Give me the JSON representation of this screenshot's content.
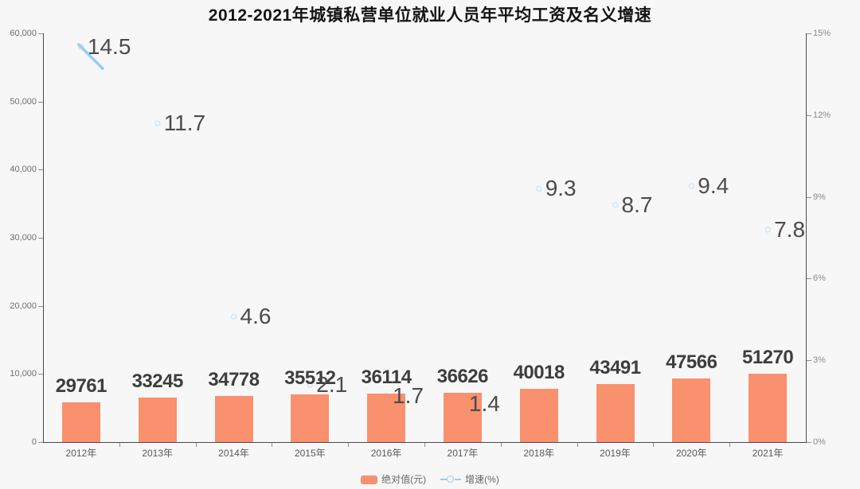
{
  "chart_data": {
    "type": "bar",
    "title": "2012-2021年城镇私营单位就业人员年平均工资及名义增速",
    "categories": [
      "2012年",
      "2013年",
      "2014年",
      "2015年",
      "2016年",
      "2017年",
      "2018年",
      "2019年",
      "2020年",
      "2021年"
    ],
    "series": [
      {
        "name": "绝对值(元)",
        "type": "bar",
        "color": "#F9906E",
        "values": [
          29761,
          33245,
          34778,
          35512,
          36114,
          36626,
          40018,
          43491,
          47566,
          51270
        ]
      },
      {
        "name": "增速(%)",
        "type": "line",
        "color": "#98CCF0",
        "marker": "hollow-circle",
        "values": [
          14.5,
          11.7,
          4.6,
          2.1,
          1.7,
          1.4,
          9.3,
          8.7,
          9.4,
          7.8
        ]
      }
    ],
    "left_axis": {
      "ticks": [
        "60,000",
        "50,000",
        "40,000",
        "30,000",
        "20,000",
        "10,000",
        "0"
      ],
      "min": 0,
      "max": 60000
    },
    "right_axis": {
      "ticks": [
        "15%",
        "12%",
        "9%",
        "6%",
        "3%",
        "0%"
      ],
      "min": 0,
      "max": 15
    },
    "legend_position": "bottom",
    "grid": false
  }
}
